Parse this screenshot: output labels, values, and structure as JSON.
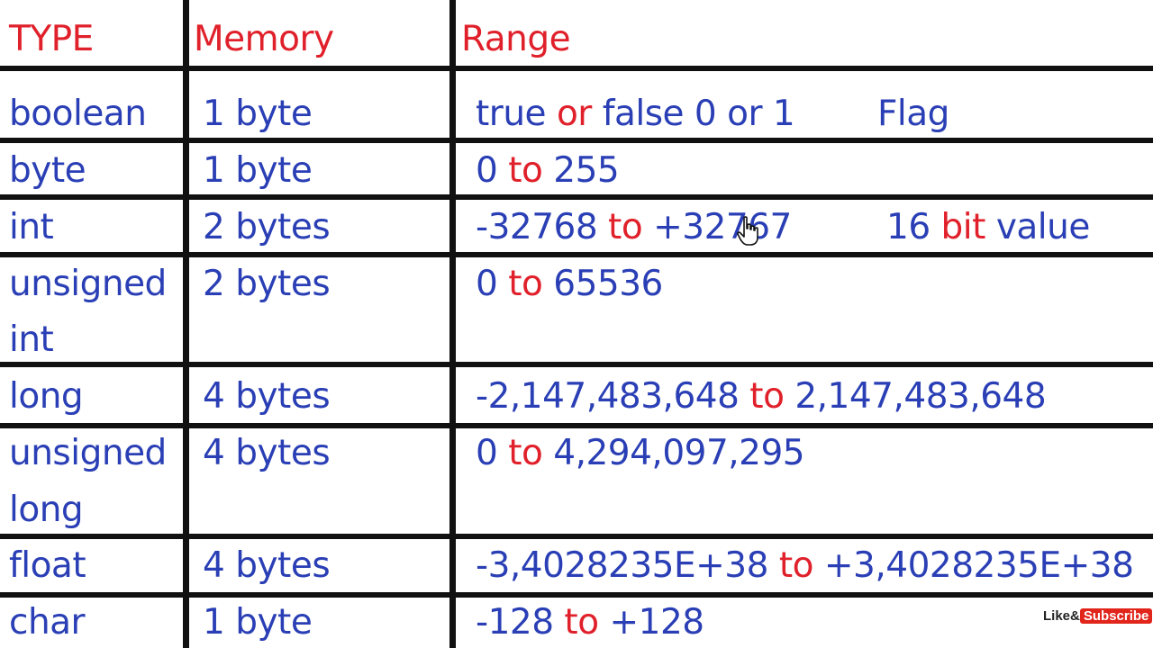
{
  "header": {
    "type": "TYPE",
    "memory": "Memory",
    "range": "Range"
  },
  "rows": [
    {
      "type_line1": "boolean",
      "type_line2": "",
      "memory": "1 byte",
      "range_parts": [
        {
          "text": "true ",
          "color": "blue"
        },
        {
          "text": "or",
          "color": "red"
        },
        {
          "text": " false 0 or 1",
          "color": "blue"
        }
      ],
      "note_parts": [
        {
          "text": "Flag",
          "color": "blue"
        }
      ]
    },
    {
      "type_line1": "byte",
      "type_line2": "",
      "memory": "1 byte",
      "range_parts": [
        {
          "text": "0 ",
          "color": "blue"
        },
        {
          "text": "to",
          "color": "red"
        },
        {
          "text": " 255",
          "color": "blue"
        }
      ],
      "note_parts": []
    },
    {
      "type_line1": "int",
      "type_line2": "",
      "memory": "2 bytes",
      "range_parts": [
        {
          "text": "-32768 ",
          "color": "blue"
        },
        {
          "text": "to",
          "color": "red"
        },
        {
          "text": " +32767",
          "color": "blue"
        }
      ],
      "note_parts": [
        {
          "text": "16 ",
          "color": "blue"
        },
        {
          "text": "bit",
          "color": "red"
        },
        {
          "text": " value",
          "color": "blue"
        }
      ]
    },
    {
      "type_line1": "unsigned",
      "type_line2": "int",
      "memory": "2 bytes",
      "range_parts": [
        {
          "text": "0 ",
          "color": "blue"
        },
        {
          "text": "to",
          "color": "red"
        },
        {
          "text": " 65536",
          "color": "blue"
        }
      ],
      "note_parts": []
    },
    {
      "type_line1": "long",
      "type_line2": "",
      "memory": "4 bytes",
      "range_parts": [
        {
          "text": "-2,147,483,648 ",
          "color": "blue"
        },
        {
          "text": "to",
          "color": "red"
        },
        {
          "text": " 2,147,483,648",
          "color": "blue"
        }
      ],
      "note_parts": []
    },
    {
      "type_line1": "unsigned",
      "type_line2": "long",
      "memory": "4 bytes",
      "range_parts": [
        {
          "text": "0 ",
          "color": "blue"
        },
        {
          "text": "to",
          "color": "red"
        },
        {
          "text": " 4,294,097,295",
          "color": "blue"
        }
      ],
      "note_parts": []
    },
    {
      "type_line1": "float",
      "type_line2": "",
      "memory": "4 bytes",
      "range_parts": [
        {
          "text": "-3,4028235E+38 ",
          "color": "blue"
        },
        {
          "text": "to",
          "color": "red"
        },
        {
          "text": " +3,4028235E+38",
          "color": "blue"
        }
      ],
      "note_parts": []
    },
    {
      "type_line1": "char",
      "type_line2": "",
      "memory": "1 byte",
      "range_parts": [
        {
          "text": "-128 ",
          "color": "blue"
        },
        {
          "text": "to",
          "color": "red"
        },
        {
          "text": " +128",
          "color": "blue"
        }
      ],
      "note_parts": []
    }
  ],
  "watermark": {
    "like": "Like&",
    "subscribe": "Subscribe"
  },
  "colors": {
    "blue": "#2a3fb5",
    "red": "#e0202a",
    "lines": "#111111"
  },
  "icons": {
    "cursor": "hand-pointer-icon"
  }
}
